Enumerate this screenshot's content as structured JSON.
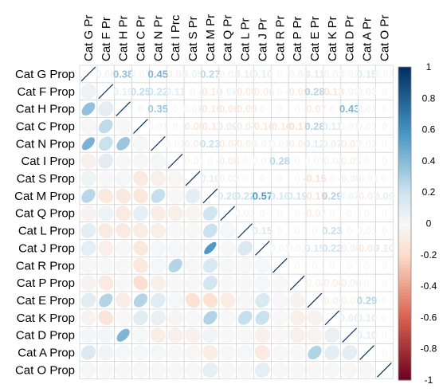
{
  "chart_data": {
    "type": "heatmap",
    "variables": [
      "Cat G Prop",
      "Cat F Prop",
      "Cat H Prop",
      "Cat C Prop",
      "Cat N Prop",
      "Cat I Prop",
      "Cat S Prop",
      "Cat M Prop",
      "Cat Q Prop",
      "Cat L Prop",
      "Cat J Prop",
      "Cat R Prop",
      "Cat P Prop",
      "Cat E Prop",
      "Cat K Prop",
      "Cat D Prop",
      "Cat A Prop",
      "Cat O Prop"
    ],
    "column_labels": [
      "Cat G Pr",
      "Cat F Pr",
      "Cat H Pr",
      "Cat C Pr",
      "Cat N Pr",
      "Cat I Prc",
      "Cat S Pr",
      "Cat M Pr",
      "Cat Q Pr",
      "Cat L Pr",
      "Cat J Pr",
      "Cat R Pr",
      "Cat P Pr",
      "Cat E Pr",
      "Cat K Pr",
      "Cat D Pr",
      "Cat A Pr",
      "Cat O Pr"
    ],
    "lower_method": "ellipse",
    "upper_method": "number",
    "matrix": [
      [
        1,
        0.06,
        0.38,
        0.01,
        0.45,
        -0.05,
        0.05,
        0.27,
        -0.03,
        0.1,
        0.1,
        0.0,
        -0.03,
        0.11,
        -0.03,
        0.02,
        0.15,
        0.01
      ],
      [
        0.06,
        1,
        0.1,
        0.25,
        0.22,
        0.11,
        0.0,
        -0.1,
        0.05,
        -0.09,
        -0.06,
        0.0,
        -0.09,
        0.28,
        -0.13,
        0.02,
        0.03,
        0.0
      ],
      [
        0.38,
        0.1,
        1,
        0.0,
        0.35,
        0.0,
        0.01,
        -0.1,
        -0.09,
        -0.09,
        0.0,
        0.0,
        0.0,
        -0.07,
        0.0,
        0.43,
        0.01,
        0.0
      ],
      [
        0.01,
        0.25,
        0.0,
        1,
        0.01,
        0.0,
        -0.09,
        -0.11,
        0.09,
        -0.07,
        -0.1,
        -0.1,
        -0.17,
        0.28,
        0.11,
        0.01,
        0.01,
        0.0
      ],
      [
        0.45,
        0.22,
        0.35,
        0.01,
        1,
        0.01,
        -0.06,
        0.23,
        -0.07,
        -0.06,
        0.01,
        0.01,
        -0.06,
        0.12,
        0.07,
        -0.07,
        0.01,
        0.0
      ],
      [
        -0.05,
        0.11,
        0.0,
        0.0,
        0.01,
        1,
        -0.01,
        0.0,
        -0.06,
        0.0,
        0.01,
        0.28,
        0.0,
        0.01,
        -0.02,
        -0.05,
        0.0,
        0.0
      ],
      [
        0.05,
        0.0,
        0.01,
        -0.09,
        -0.06,
        -0.01,
        1,
        0.1,
        -0.02,
        0.0,
        0.0,
        0.0,
        0.0,
        -0.15,
        0.0,
        -0.05,
        -0.01,
        0.0
      ],
      [
        0.27,
        -0.1,
        -0.1,
        -0.11,
        0.23,
        0.0,
        0.1,
        1,
        0.2,
        0.22,
        0.57,
        0.16,
        0.19,
        -0.15,
        0.29,
        0.03,
        -0.07,
        0.09
      ],
      [
        -0.03,
        0.05,
        -0.09,
        0.09,
        -0.07,
        -0.06,
        -0.02,
        0.2,
        1,
        0.01,
        0.0,
        0.0,
        0.0,
        -0.07,
        0.0,
        0.0,
        0.0,
        0.0
      ],
      [
        0.1,
        -0.09,
        -0.09,
        -0.07,
        -0.06,
        0.0,
        0.0,
        0.22,
        0.01,
        1,
        0.15,
        0.0,
        0.0,
        0.0,
        0.23,
        0.0,
        0.01,
        0.0
      ],
      [
        0.1,
        -0.06,
        0.0,
        -0.1,
        0.01,
        0.01,
        0.0,
        0.57,
        0.0,
        0.15,
        1,
        0.01,
        0.01,
        0.15,
        0.22,
        -0.05,
        -0.09,
        0.1
      ],
      [
        0.0,
        0.0,
        0.0,
        -0.1,
        0.01,
        0.28,
        0.0,
        0.16,
        0.0,
        0.0,
        0.01,
        1,
        0.0,
        0.0,
        0.0,
        0.0,
        0.0,
        0.0
      ],
      [
        -0.03,
        -0.09,
        0.0,
        -0.17,
        -0.06,
        0.0,
        0.0,
        0.19,
        0.0,
        0.0,
        0.01,
        0.0,
        1,
        -0.03,
        -0.06,
        -0.06,
        0.0,
        0.0
      ],
      [
        0.11,
        0.28,
        -0.07,
        0.28,
        0.12,
        0.01,
        -0.15,
        -0.15,
        -0.07,
        0.0,
        0.15,
        0.0,
        -0.03,
        1,
        -0.04,
        -0.02,
        0.29,
        0.0
      ],
      [
        -0.03,
        -0.13,
        0.0,
        0.11,
        0.07,
        -0.02,
        0.0,
        0.29,
        0.0,
        0.23,
        0.22,
        0.0,
        -0.06,
        -0.04,
        1,
        0.08,
        0.1,
        0.0
      ],
      [
        0.02,
        0.02,
        0.43,
        0.01,
        -0.07,
        -0.05,
        -0.05,
        0.03,
        0.0,
        0.0,
        -0.05,
        0.0,
        -0.06,
        -0.02,
        0.08,
        1,
        0.1,
        0.0
      ],
      [
        0.15,
        0.03,
        0.01,
        0.01,
        0.01,
        0.0,
        -0.01,
        -0.07,
        0.0,
        0.01,
        -0.09,
        0.0,
        0.0,
        0.29,
        0.1,
        0.1,
        1,
        0.0
      ],
      [
        0.01,
        0.0,
        0.0,
        0.0,
        0.0,
        0.0,
        0.0,
        0.09,
        0.0,
        0.0,
        0.1,
        0.0,
        0.0,
        0.0,
        0.0,
        0.0,
        0.0,
        1
      ]
    ],
    "colorbar": {
      "min": -1,
      "max": 1,
      "ticks": [
        1,
        0.8,
        0.6,
        0.4,
        0.2,
        0,
        -0.2,
        -0.4,
        -0.6,
        -0.8,
        -1
      ],
      "colors": {
        "neg_full": "#67001f",
        "neg_mid": "#d6604d",
        "neg_light": "#fddbc7",
        "zero": "#f7f7f7",
        "pos_light": "#d1e5f0",
        "pos_mid": "#4393c3",
        "pos_full": "#053061"
      }
    },
    "grid": true,
    "legend_position": "right"
  }
}
